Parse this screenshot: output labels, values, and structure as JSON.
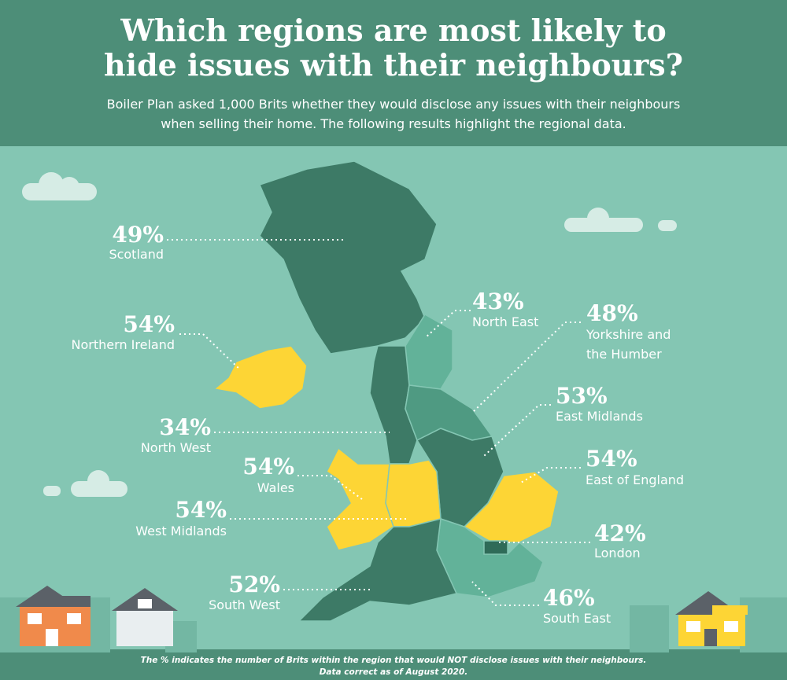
{
  "header": {
    "title_lines": [
      "Which regions are most likely to",
      "hide issues with their neighbours?"
    ],
    "subtitle_lines": [
      "Boiler Plan asked 1,000 Brits whether they would disclose any issues with their neighbours",
      "when selling their home. The following results highlight the regional data."
    ]
  },
  "regions": [
    {
      "label": "49%",
      "name": [
        "Scotland"
      ]
    },
    {
      "label": "54%",
      "name": [
        "Northern Ireland"
      ]
    },
    {
      "label": "43%",
      "name": [
        "North East"
      ]
    },
    {
      "label": "48%",
      "name": [
        "Yorkshire and",
        "the Humber"
      ]
    },
    {
      "label": "34%",
      "name": [
        "North West"
      ]
    },
    {
      "label": "53%",
      "name": [
        "East Midlands"
      ]
    },
    {
      "label": "54%",
      "name": [
        "Wales"
      ]
    },
    {
      "label": "54%",
      "name": [
        "East of England"
      ]
    },
    {
      "label": "54%",
      "name": [
        "West Midlands"
      ]
    },
    {
      "label": "42%",
      "name": [
        "London"
      ]
    },
    {
      "label": "52%",
      "name": [
        "South West"
      ]
    },
    {
      "label": "46%",
      "name": [
        "South East"
      ]
    }
  ],
  "footnote_lines": [
    "The % indicates the number of Brits within the region that would NOT disclose issues with their neighbours.",
    "Data correct as of August 2020."
  ]
}
